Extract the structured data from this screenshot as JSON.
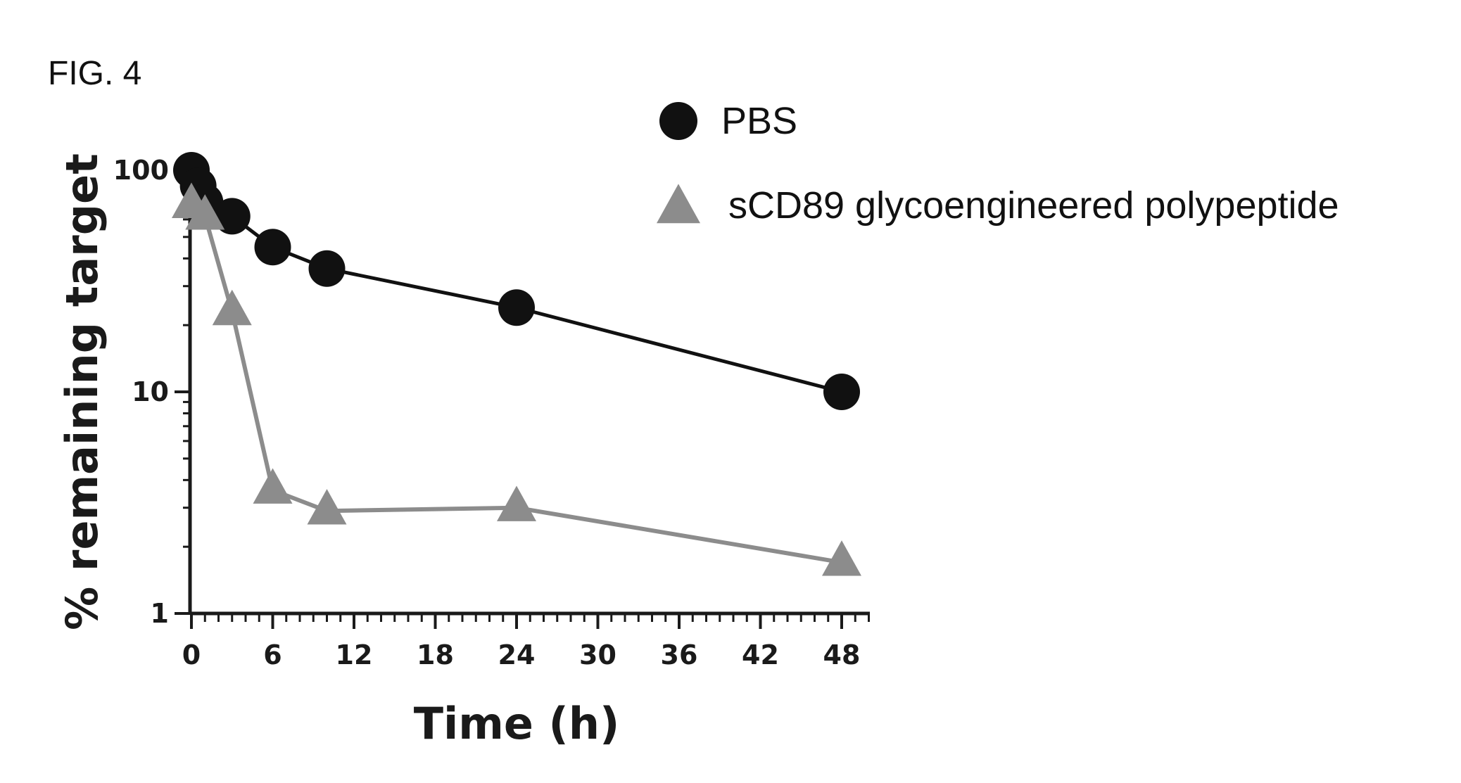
{
  "figure_label": "FIG. 4",
  "chart_data": {
    "type": "line",
    "title": "",
    "xlabel": "Time (h)",
    "ylabel": "% remaining target",
    "x_scale": "linear",
    "y_scale": "log",
    "xlim": [
      0,
      50
    ],
    "ylim": [
      1,
      100
    ],
    "x_ticks": [
      "0",
      "6",
      "12",
      "18",
      "24",
      "30",
      "36",
      "42",
      "48"
    ],
    "y_ticks": [
      "1",
      "10",
      "100"
    ],
    "grid": false,
    "legend_position": "top-right",
    "series": [
      {
        "name": "PBS",
        "marker": "circle",
        "color": "#111111",
        "points": [
          [
            0,
            100
          ],
          [
            0.5,
            85
          ],
          [
            1,
            72
          ],
          [
            3,
            62
          ],
          [
            6,
            45
          ],
          [
            10,
            36
          ],
          [
            24,
            24
          ],
          [
            48,
            10
          ]
        ]
      },
      {
        "name": "sCD89 glycoengineered polypeptide",
        "marker": "triangle",
        "color": "#8c8c8c",
        "points": [
          [
            0,
            70
          ],
          [
            1,
            62
          ],
          [
            3,
            23
          ],
          [
            6,
            3.6
          ],
          [
            10,
            2.9
          ],
          [
            24,
            3.0
          ],
          [
            48,
            1.7
          ]
        ]
      }
    ]
  }
}
